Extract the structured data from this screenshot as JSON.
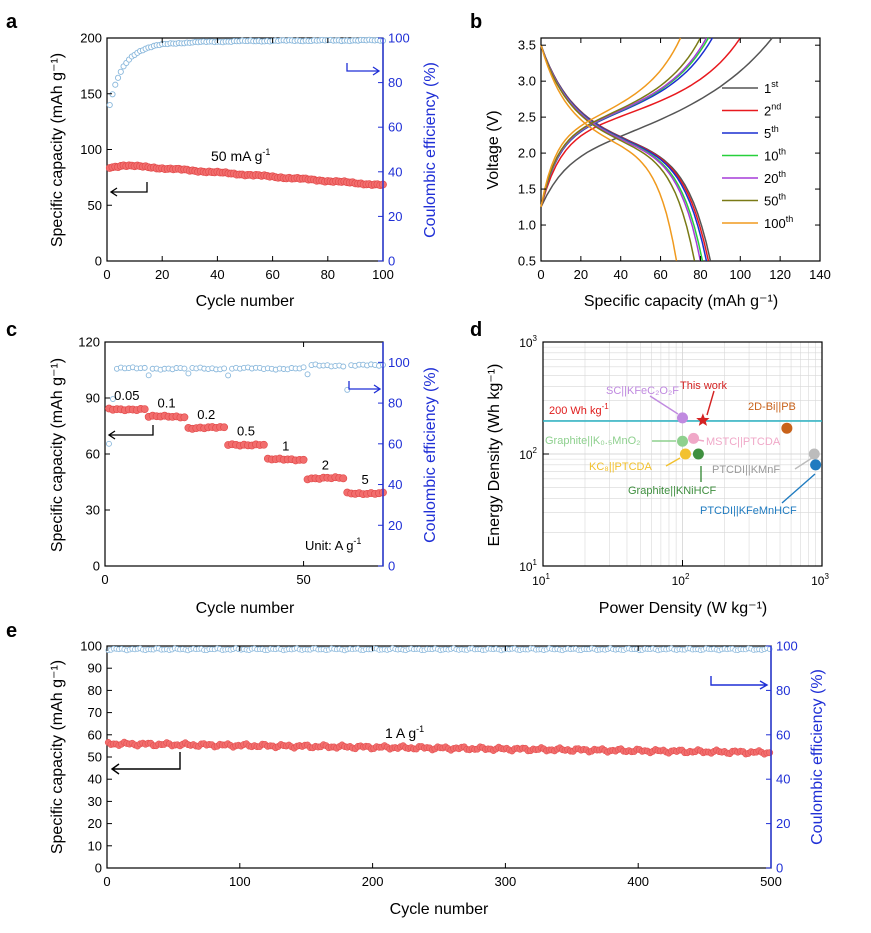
{
  "colors": {
    "capacity": "#f26d6d",
    "capacity_stroke": "#e04848",
    "ce": "#8ab8dc",
    "ce_axis": "#1f2fd6",
    "line200": "#2bb3c4",
    "c1": "#555555",
    "c2": "#e8191e",
    "c5": "#1a2fd0",
    "c10": "#27d03b",
    "c20": "#a63bd8",
    "c50": "#7a7a16",
    "c100": "#f09a1e"
  },
  "chart_data": [
    {
      "panel": "a",
      "type": "scatter",
      "xlabel": "Cycle number",
      "ylabel": "Specific capacity (mAh g⁻¹)",
      "y2label": "Coulombic efficiency (%)",
      "xlim": [
        0,
        100
      ],
      "ylim": [
        0,
        200
      ],
      "y2lim": [
        0,
        100
      ],
      "xticks": [
        "0",
        "20",
        "40",
        "60",
        "80",
        "100"
      ],
      "yticks": [
        "0",
        "50",
        "100",
        "150",
        "200"
      ],
      "y2ticks": [
        "0",
        "20",
        "40",
        "60",
        "80",
        "100"
      ],
      "annotation": "50 mA g",
      "annotation_sup": "-1",
      "series": [
        {
          "name": "Specific capacity",
          "axis": "left",
          "start": 87,
          "end": 68,
          "x_range": [
            1,
            100
          ]
        },
        {
          "name": "Coulombic efficiency",
          "axis": "right",
          "start": 73,
          "plateau": 99,
          "x_range": [
            1,
            100
          ]
        }
      ]
    },
    {
      "panel": "b",
      "type": "line",
      "xlabel": "Specific capacity (mAh g⁻¹)",
      "ylabel": "Voltage (V)",
      "xlim": [
        0,
        140
      ],
      "ylim": [
        0.5,
        3.6
      ],
      "xticks": [
        "0",
        "20",
        "40",
        "60",
        "80",
        "100",
        "120",
        "140"
      ],
      "yticks": [
        "0.5",
        "1.0",
        "1.5",
        "2.0",
        "2.5",
        "3.0",
        "3.5"
      ],
      "legend": [
        {
          "base": "1",
          "sup": "st",
          "color_key": "c1"
        },
        {
          "base": "2",
          "sup": "nd",
          "color_key": "c2"
        },
        {
          "base": "5",
          "sup": "th",
          "color_key": "c5"
        },
        {
          "base": "10",
          "sup": "th",
          "color_key": "c10"
        },
        {
          "base": "20",
          "sup": "th",
          "color_key": "c20"
        },
        {
          "base": "50",
          "sup": "th",
          "color_key": "c50"
        },
        {
          "base": "100",
          "sup": "th",
          "color_key": "c100"
        }
      ],
      "series": [
        {
          "name": "1st",
          "charge_cap": 116,
          "discharge_cap": 85,
          "color_key": "c1"
        },
        {
          "name": "2nd",
          "charge_cap": 100,
          "discharge_cap": 84,
          "color_key": "c2"
        },
        {
          "name": "5th",
          "charge_cap": 86,
          "discharge_cap": 83,
          "color_key": "c5"
        },
        {
          "name": "10th",
          "charge_cap": 84,
          "discharge_cap": 81,
          "color_key": "c10"
        },
        {
          "name": "20th",
          "charge_cap": 83,
          "discharge_cap": 80,
          "color_key": "c20"
        },
        {
          "name": "50th",
          "charge_cap": 80,
          "discharge_cap": 77,
          "color_key": "c50"
        },
        {
          "name": "100th",
          "charge_cap": 70,
          "discharge_cap": 68,
          "color_key": "c100"
        }
      ]
    },
    {
      "panel": "c",
      "type": "scatter",
      "xlabel": "Cycle number",
      "ylabel": "Specific capacity (mAh g⁻¹)",
      "y2label": "Coulombic efficiency (%)",
      "xlim": [
        0,
        70
      ],
      "ylim": [
        0,
        120
      ],
      "y2lim": [
        0,
        110
      ],
      "xticks": [
        "0",
        "50"
      ],
      "yticks": [
        "0",
        "30",
        "60",
        "90",
        "120"
      ],
      "y2ticks": [
        "0",
        "20",
        "40",
        "60",
        "80",
        "100"
      ],
      "unit_label": "Unit: A g",
      "unit_sup": "-1",
      "rates": [
        {
          "label": "0.05",
          "x": [
            1,
            10
          ],
          "capacity": 84
        },
        {
          "label": "0.1",
          "x": [
            11,
            20
          ],
          "capacity": 80
        },
        {
          "label": "0.2",
          "x": [
            21,
            30
          ],
          "capacity": 74
        },
        {
          "label": "0.5",
          "x": [
            31,
            40
          ],
          "capacity": 65
        },
        {
          "label": "1",
          "x": [
            41,
            50
          ],
          "capacity": 57
        },
        {
          "label": "2",
          "x": [
            51,
            60
          ],
          "capacity": 47
        },
        {
          "label": "5",
          "x": [
            61,
            70
          ],
          "capacity": 39
        }
      ],
      "ce_plateau": 97
    },
    {
      "panel": "d",
      "type": "scatter",
      "xlabel": "Power Density (W kg⁻¹)",
      "ylabel": "Energy Density (Wh kg⁻¹)",
      "xscale": "log",
      "yscale": "log",
      "xlim": [
        10,
        1000
      ],
      "ylim": [
        10,
        1000
      ],
      "xticks": [
        {
          "base": "10",
          "exp": "1"
        },
        {
          "base": "10",
          "exp": "2"
        },
        {
          "base": "10",
          "exp": "3"
        }
      ],
      "yticks": [
        {
          "base": "10",
          "exp": "1"
        },
        {
          "base": "10",
          "exp": "2"
        },
        {
          "base": "10",
          "exp": "3"
        }
      ],
      "reference_line": {
        "value": 200,
        "label": "200 Wh kg",
        "sup": "-1"
      },
      "points": [
        {
          "label": "This work",
          "x": 140,
          "y": 200,
          "color": "#d42222",
          "marker": "star"
        },
        {
          "label": "SC||KFeC₂O₂F",
          "x": 100,
          "y": 210,
          "color": "#c08ae0",
          "marker": "circle"
        },
        {
          "label": "Graphite||K₀.₅MnO₂",
          "x": 100,
          "y": 130,
          "color": "#8ed08e",
          "marker": "circle"
        },
        {
          "label": "MSTC||PTCDA",
          "x": 120,
          "y": 138,
          "color": "#f0a8c8",
          "marker": "circle"
        },
        {
          "label": "KC₈||PTCDA",
          "x": 105,
          "y": 100,
          "color": "#f2c12e",
          "marker": "circle"
        },
        {
          "label": "Graphite||KNiHCF",
          "x": 130,
          "y": 100,
          "color": "#3f8f3f",
          "marker": "circle"
        },
        {
          "label": "2D-Bi||PB",
          "x": 560,
          "y": 170,
          "color": "#c8621a",
          "marker": "circle"
        },
        {
          "label": "PTCDI||KMnF",
          "x": 880,
          "y": 100,
          "color": "#bcbcbc",
          "marker": "circle"
        },
        {
          "label": "PTCDI||KFeMnHCF",
          "x": 900,
          "y": 80,
          "color": "#1f7bc0",
          "marker": "circle"
        }
      ]
    },
    {
      "panel": "e",
      "type": "scatter",
      "xlabel": "Cycle number",
      "ylabel": "Specific capacity (mAh g⁻¹)",
      "y2label": "Coulombic efficiency (%)",
      "xlim": [
        0,
        500
      ],
      "ylim": [
        0,
        100
      ],
      "y2lim": [
        0,
        100
      ],
      "xticks": [
        "0",
        "100",
        "200",
        "300",
        "400",
        "500"
      ],
      "yticks": [
        "0",
        "10",
        "20",
        "30",
        "40",
        "50",
        "60",
        "70",
        "80",
        "90",
        "100"
      ],
      "y2ticks": [
        "0",
        "20",
        "40",
        "60",
        "80",
        "100"
      ],
      "annotation": "1 A g",
      "annotation_sup": "-1",
      "series": [
        {
          "name": "Specific capacity",
          "axis": "left",
          "start": 56,
          "end": 52,
          "x_range": [
            1,
            500
          ]
        },
        {
          "name": "Coulombic efficiency",
          "axis": "right",
          "plateau": 98.5,
          "x_range": [
            1,
            500
          ]
        }
      ]
    }
  ]
}
